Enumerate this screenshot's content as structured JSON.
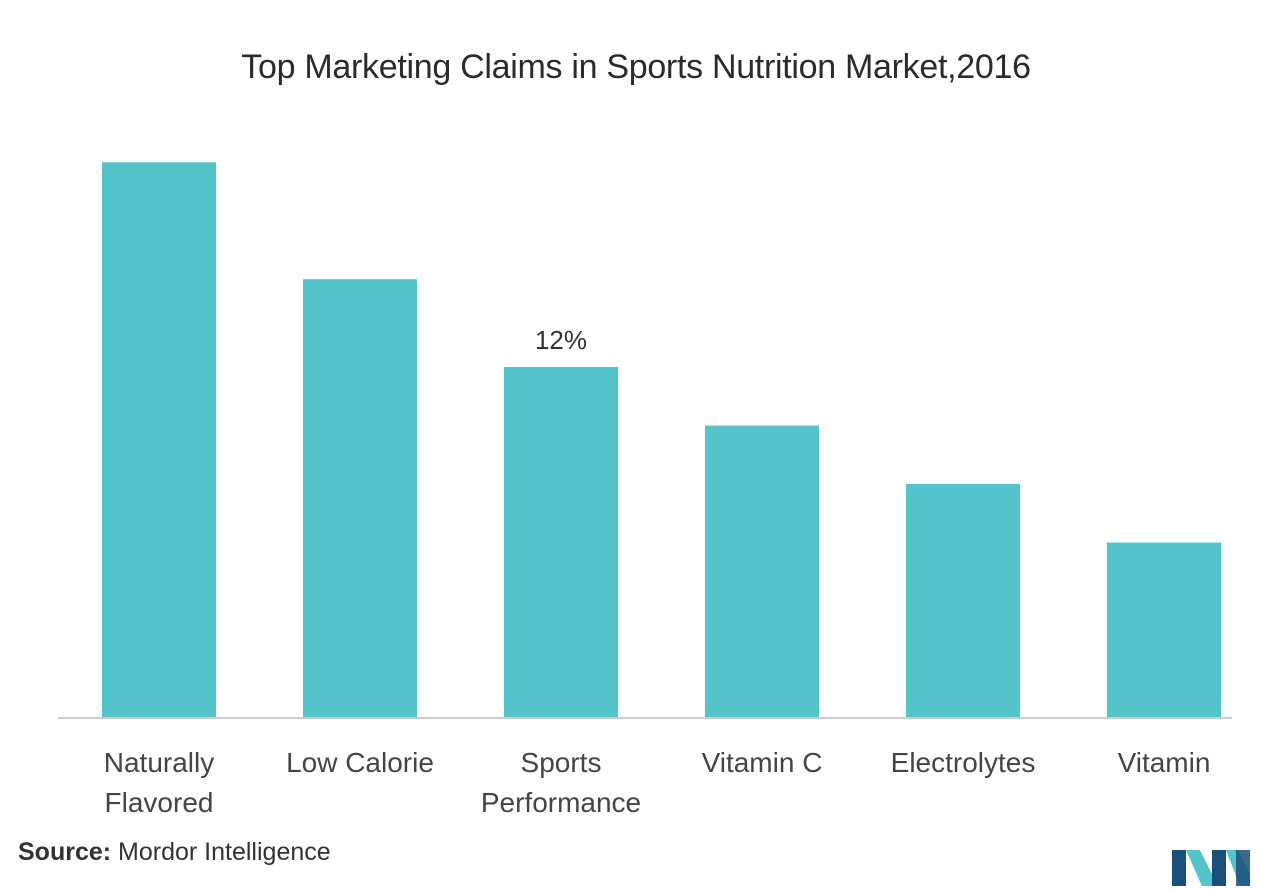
{
  "chart_data": {
    "type": "bar",
    "title": "Top Marketing Claims in Sports Nutrition Market,2016",
    "categories": [
      [
        "Naturally",
        "Flavored"
      ],
      [
        "Low Calorie"
      ],
      [
        "Sports",
        "Performance"
      ],
      [
        "Vitamin C"
      ],
      [
        "Electrolytes"
      ],
      [
        "Vitamin"
      ]
    ],
    "values": [
      19,
      15,
      12,
      10,
      8,
      6
    ],
    "data_labels": [
      null,
      null,
      "12%",
      null,
      null,
      null
    ],
    "ylim": [
      0,
      20
    ],
    "bar_color": "#52c4ca",
    "axis_color": "#cccccc",
    "grid": false,
    "xlabel": "",
    "ylabel": ""
  },
  "source": {
    "prefix": "Source:",
    "text": "Mordor Intelligence"
  },
  "logo": {
    "icon": "mordor-intelligence-logo",
    "colors": [
      "#1a4f7a",
      "#52c4ca"
    ]
  }
}
